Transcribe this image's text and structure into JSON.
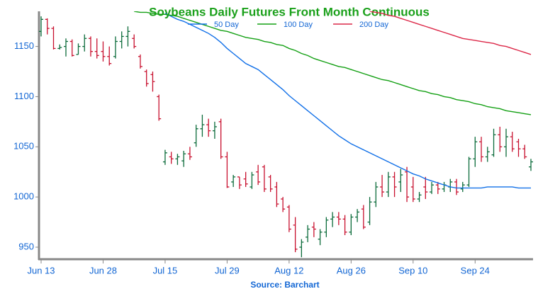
{
  "chart_data": {
    "type": "ohlc",
    "title": "Soybeans Daily Futures Front Month Continuous",
    "source": "Source: Barchart",
    "categories": [
      "Jun 13",
      null,
      null,
      null,
      null,
      null,
      null,
      null,
      null,
      null,
      "Jun 28",
      null,
      null,
      null,
      null,
      null,
      null,
      null,
      null,
      null,
      "Jul 15",
      null,
      null,
      null,
      null,
      null,
      null,
      null,
      null,
      null,
      "Jul 29",
      null,
      null,
      null,
      null,
      null,
      null,
      null,
      null,
      null,
      "Aug 12",
      null,
      null,
      null,
      null,
      null,
      null,
      null,
      null,
      null,
      "Aug 26",
      null,
      null,
      null,
      null,
      null,
      null,
      null,
      null,
      null,
      "Sep 10",
      null,
      null,
      null,
      null,
      null,
      null,
      null,
      null,
      null,
      "Sep 24",
      null,
      null,
      null,
      null,
      null,
      null,
      null,
      null,
      null
    ],
    "open": [
      1165,
      1177,
      1168,
      1148,
      1150,
      1155,
      1142,
      1150,
      1158,
      1145,
      1145,
      1140,
      1140,
      1155,
      1160,
      1158,
      1140,
      1125,
      1122,
      1100,
      1035,
      1040,
      1038,
      1036,
      1043,
      1054,
      1068,
      1072,
      1066,
      1075,
      1040,
      1015,
      1020,
      1018,
      1010,
      1025,
      1030,
      1020,
      1010,
      998,
      990,
      972,
      950,
      960,
      970,
      958,
      965,
      978,
      980,
      978,
      965,
      980,
      988,
      975,
      995,
      1010,
      1005,
      1020,
      1015,
      1025,
      1010,
      998,
      1010,
      1005,
      1012,
      1008,
      1010,
      1015,
      1008,
      1012,
      1038,
      1055,
      1040,
      1042,
      1062,
      1050,
      1060,
      1055,
      1048,
      1030
    ],
    "high": [
      1180,
      1178,
      1170,
      1152,
      1158,
      1157,
      1153,
      1162,
      1160,
      1158,
      1155,
      1150,
      1160,
      1165,
      1170,
      1162,
      1142,
      1127,
      1125,
      1102,
      1047,
      1045,
      1043,
      1046,
      1050,
      1072,
      1082,
      1078,
      1075,
      1078,
      1045,
      1022,
      1020,
      1025,
      1025,
      1032,
      1032,
      1022,
      1015,
      1000,
      992,
      980,
      958,
      972,
      975,
      968,
      980,
      985,
      985,
      982,
      983,
      988,
      992,
      1000,
      1015,
      1022,
      1025,
      1025,
      1028,
      1030,
      1020,
      1005,
      1020,
      1015,
      1015,
      1015,
      1018,
      1018,
      1015,
      1040,
      1060,
      1060,
      1050,
      1068,
      1070,
      1068,
      1065,
      1058,
      1052,
      1038
    ],
    "low": [
      1160,
      1162,
      1147,
      1147,
      1140,
      1140,
      1142,
      1145,
      1140,
      1138,
      1135,
      1131,
      1138,
      1148,
      1150,
      1148,
      1128,
      1110,
      1105,
      1076,
      1032,
      1033,
      1032,
      1030,
      1037,
      1050,
      1060,
      1060,
      1058,
      1038,
      1009,
      1010,
      1008,
      1010,
      1008,
      1012,
      1005,
      1005,
      990,
      985,
      965,
      945,
      940,
      955,
      960,
      952,
      960,
      970,
      972,
      962,
      962,
      975,
      968,
      972,
      990,
      1000,
      1000,
      1000,
      1005,
      995,
      995,
      995,
      998,
      1003,
      1003,
      1005,
      1005,
      1002,
      1005,
      1010,
      1030,
      1035,
      1035,
      1040,
      1045,
      1040,
      1045,
      1040,
      1038,
      1026
    ],
    "close": [
      1177,
      1168,
      1148,
      1149,
      1155,
      1141,
      1150,
      1158,
      1145,
      1141,
      1140,
      1133,
      1155,
      1160,
      1165,
      1150,
      1130,
      1113,
      1115,
      1078,
      1044,
      1038,
      1040,
      1043,
      1040,
      1068,
      1072,
      1066,
      1070,
      1040,
      1010,
      1020,
      1012,
      1013,
      1022,
      1015,
      1008,
      1008,
      993,
      988,
      968,
      948,
      955,
      968,
      968,
      965,
      977,
      980,
      978,
      965,
      980,
      985,
      970,
      995,
      1010,
      1005,
      1020,
      1010,
      1022,
      1000,
      998,
      1002,
      1005,
      1012,
      1008,
      1012,
      1015,
      1005,
      1012,
      1038,
      1055,
      1040,
      1045,
      1062,
      1050,
      1060,
      1048,
      1048,
      1040,
      1035
    ],
    "up_color": "#0b6b3a",
    "down_color": "#c8102e",
    "series": [
      {
        "name": "50 Day",
        "color": "#1170e8",
        "values": [
          null,
          null,
          null,
          null,
          null,
          null,
          null,
          null,
          null,
          null,
          null,
          null,
          null,
          null,
          null,
          null,
          null,
          null,
          null,
          null,
          1183,
          1180,
          1177,
          1175,
          1172,
          1169,
          1166,
          1163,
          1159,
          1154,
          1148,
          1143,
          1138,
          1133,
          1130,
          1127,
          1122,
          1117,
          1112,
          1107,
          1101,
          1096,
          1091,
          1086,
          1081,
          1076,
          1071,
          1066,
          1061,
          1057,
          1053,
          1050,
          1047,
          1044,
          1041,
          1038,
          1035,
          1032,
          1029,
          1026,
          1023,
          1021,
          1018,
          1016,
          1014,
          1012,
          1010,
          1009,
          1009,
          1009,
          1009,
          1009,
          1010,
          1010,
          1010,
          1010,
          1010,
          1009,
          1009,
          1009
        ]
      },
      {
        "name": "100 Day",
        "color": "#14a014",
        "values": [
          null,
          null,
          null,
          null,
          null,
          null,
          null,
          null,
          null,
          null,
          null,
          null,
          null,
          null,
          null,
          1185,
          1184,
          1184,
          1183,
          1182,
          1182,
          1181,
          1180,
          1178,
          1176,
          1174,
          1172,
          1170,
          1168,
          1166,
          1165,
          1163,
          1161,
          1159,
          1158,
          1157,
          1155,
          1154,
          1152,
          1151,
          1148,
          1146,
          1143,
          1141,
          1138,
          1136,
          1134,
          1132,
          1130,
          1129,
          1127,
          1125,
          1123,
          1121,
          1119,
          1117,
          1116,
          1114,
          1112,
          1110,
          1108,
          1106,
          1105,
          1103,
          1102,
          1100,
          1099,
          1097,
          1096,
          1095,
          1093,
          1092,
          1090,
          1089,
          1088,
          1086,
          1085,
          1084,
          1083,
          1082
        ]
      },
      {
        "name": "200 Day",
        "color": "#dc2848",
        "values": [
          null,
          null,
          null,
          null,
          null,
          null,
          null,
          null,
          null,
          null,
          null,
          null,
          null,
          null,
          null,
          null,
          null,
          null,
          null,
          null,
          null,
          null,
          null,
          null,
          null,
          null,
          null,
          null,
          null,
          null,
          null,
          null,
          null,
          null,
          null,
          null,
          null,
          null,
          null,
          null,
          null,
          null,
          null,
          null,
          null,
          null,
          null,
          null,
          null,
          null,
          null,
          null,
          null,
          1185,
          1184,
          1183,
          1181,
          1180,
          1178,
          1176,
          1174,
          1172,
          1170,
          1168,
          1166,
          1164,
          1162,
          1160,
          1158,
          1157,
          1156,
          1155,
          1154,
          1153,
          1151,
          1150,
          1148,
          1146,
          1144,
          1142
        ]
      }
    ],
    "ylim": [
      938,
      1185
    ],
    "yticks": [
      950,
      1000,
      1050,
      1100,
      1150
    ],
    "legend": "top"
  }
}
